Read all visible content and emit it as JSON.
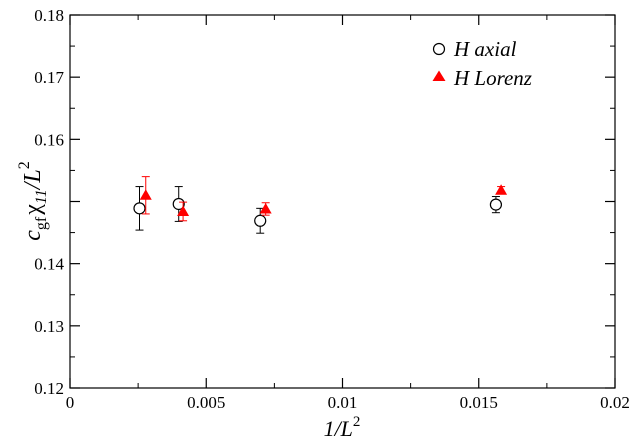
{
  "chart_data": {
    "type": "scatter",
    "xlabel": "1/L^2",
    "ylabel": "c_gf χ_11/L^2",
    "xlim": [
      0,
      0.02
    ],
    "ylim": [
      0.12,
      0.18
    ],
    "x_ticks": [
      0,
      0.005,
      0.01,
      0.015,
      0.02
    ],
    "x_tick_labels": [
      "0",
      "0.005",
      "0.01",
      "0.015",
      "0.02"
    ],
    "y_ticks": [
      0.12,
      0.13,
      0.14,
      0.15,
      0.16,
      0.17,
      0.18
    ],
    "y_tick_labels": [
      "0.12",
      "0.13",
      "0.14",
      "",
      "0.16",
      "0.17",
      "0.18"
    ],
    "grid": false,
    "legend_position": "top-right",
    "series": [
      {
        "name": "H axial",
        "marker": "open-circle",
        "color": "#000000",
        "points": [
          {
            "x": 0.00255,
            "y": 0.1489,
            "err": 0.0035
          },
          {
            "x": 0.00399,
            "y": 0.1496,
            "err": 0.0028
          },
          {
            "x": 0.00698,
            "y": 0.1469,
            "err": 0.002
          },
          {
            "x": 0.01563,
            "y": 0.1495,
            "err": 0.0013
          }
        ]
      },
      {
        "name": "H Lorenz",
        "marker": "filled-triangle",
        "color": "#ff0000",
        "points": [
          {
            "x": 0.00278,
            "y": 0.151,
            "err": 0.003
          },
          {
            "x": 0.00415,
            "y": 0.1484,
            "err": 0.0015
          },
          {
            "x": 0.00718,
            "y": 0.1488,
            "err": 0.001
          },
          {
            "x": 0.01582,
            "y": 0.1518,
            "err": 0.0006
          }
        ]
      }
    ]
  },
  "labels": {
    "ylabel_c": "c",
    "ylabel_sub": "gf",
    "ylabel_chi": "χ",
    "ylabel_chi_sub": "11",
    "ylabel_over": "/L",
    "ylabel_sup": "2",
    "xlabel_main": "1/L",
    "xlabel_sup": "2"
  }
}
